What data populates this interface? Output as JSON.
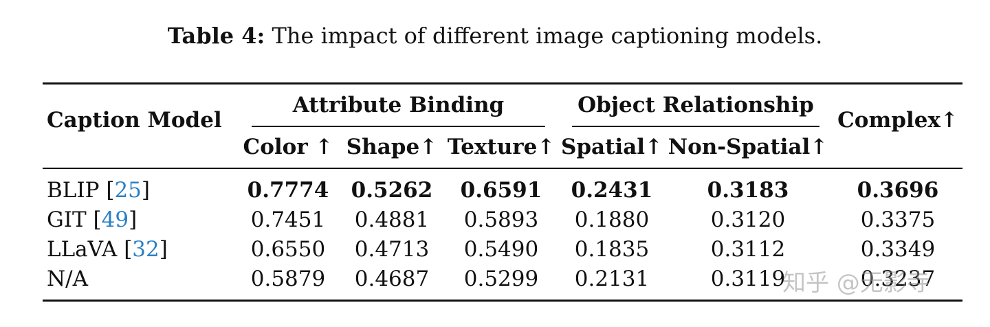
{
  "caption": {
    "label": "Table 4:",
    "text": " The impact of different image captioning models."
  },
  "table": {
    "row_header": "Caption Model",
    "groups": [
      {
        "label": "Attribute Binding"
      },
      {
        "label": "Object Relationship"
      }
    ],
    "last_header": "Complex↑",
    "subheaders": [
      "Color ↑",
      "Shape↑",
      "Texture↑",
      "Spatial↑",
      "Non-Spatial↑"
    ],
    "rows": [
      {
        "name": "BLIP ",
        "cite": "25",
        "bold": true,
        "values": [
          "0.7774",
          "0.5262",
          "0.6591",
          "0.2431",
          "0.3183",
          "0.3696"
        ]
      },
      {
        "name": "GIT ",
        "cite": "49",
        "bold": false,
        "values": [
          "0.7451",
          "0.4881",
          "0.5893",
          "0.1880",
          "0.3120",
          "0.3375"
        ]
      },
      {
        "name": "LLaVA ",
        "cite": "32",
        "bold": false,
        "values": [
          "0.6550",
          "0.4713",
          "0.5490",
          "0.1835",
          "0.3112",
          "0.3349"
        ]
      },
      {
        "name": "N/A",
        "cite": "",
        "bold": false,
        "values": [
          "0.5879",
          "0.4687",
          "0.5299",
          "0.2131",
          "0.3119",
          "0.3237"
        ]
      }
    ]
  },
  "watermark": "知乎 @无影寺"
}
